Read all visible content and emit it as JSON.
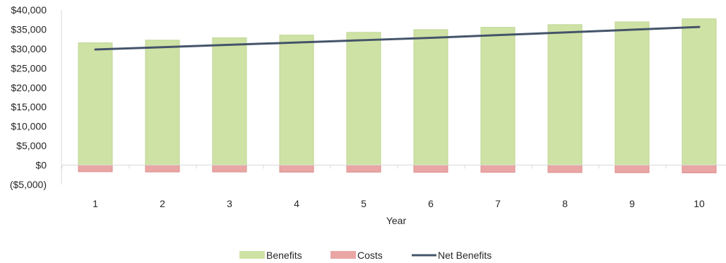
{
  "chart_data": {
    "type": "bar",
    "xlabel": "Year",
    "ylabel": "",
    "ylim": [
      -5000,
      40000
    ],
    "y_ticks": [
      "$40,000",
      "$35,000",
      "$30,000",
      "$25,000",
      "$20,000",
      "$15,000",
      "$10,000",
      "$5,000",
      "$0",
      "($5,000)"
    ],
    "y_tick_values": [
      40000,
      35000,
      30000,
      25000,
      20000,
      15000,
      10000,
      5000,
      0,
      -5000
    ],
    "categories": [
      "1",
      "2",
      "3",
      "4",
      "5",
      "6",
      "7",
      "8",
      "9",
      "10"
    ],
    "series": [
      {
        "name": "Benefits",
        "type": "bar",
        "color": "#cfe2a5",
        "values": [
          31500,
          32200,
          32800,
          33500,
          34200,
          34900,
          35500,
          36200,
          36900,
          37700
        ]
      },
      {
        "name": "Costs",
        "type": "bar",
        "color": "#eaa6a4",
        "values": [
          -1700,
          -1750,
          -1750,
          -1800,
          -1800,
          -1850,
          -1850,
          -1900,
          -1950,
          -2000
        ]
      },
      {
        "name": "Net Benefits",
        "type": "line",
        "color": "#44546a",
        "values": [
          29800,
          30400,
          31000,
          31600,
          32200,
          32800,
          33500,
          34200,
          34900,
          35600
        ]
      }
    ],
    "grid": false,
    "legend": "bottom"
  }
}
